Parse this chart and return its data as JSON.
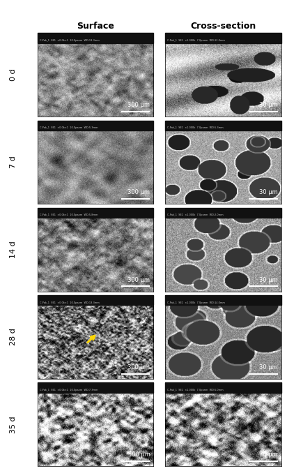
{
  "title_surface": "Surface",
  "title_cross": "Cross-section",
  "row_labels": [
    "0 d",
    "7 d",
    "14 d",
    "28 d",
    "35 d"
  ],
  "scale_bars_surface": [
    "300 μm",
    "300 μm",
    "300 μm",
    "300 μm",
    "500 μm"
  ],
  "scale_bars_cross": [
    "30 μm",
    "30 μm",
    "30 μm",
    "30 μm",
    "30 μm"
  ],
  "sem_info_left": [
    "C-Pak_1  SE1  ×0.0k×1  10.0panm  WD:13.3mm",
    "C-Pak_1  SE1  ×0.0k×1  10.0panm  WD:5.3mm",
    "C-Pak_1  SE1  ×0.0k×1  10.0panm  WD:5.8mm",
    "C-Pak_1  SE1  ×0.0k×1  10.0panm  WD:13.3mm",
    "C-Pak_1  SE1  ×0.0k×1  10.0panm  WD:7.3mm"
  ],
  "sem_info_right": [
    "C-Pak_1  SE1  ×1.000k  7.0panm  WD:12.0mm",
    "C-Pak_1  SE1  ×1.000k  7.0panm  WD:5.3mm",
    "C-Pak_1  SE1  ×1.000k  7.0panm  WD:2.0mm",
    "C-Pak_1  SE1  ×1.000k  7.0panm  WD:14.0mm",
    "C-Pak_1  SE1  ×1.000k  7.0panm  WD:5.0mm"
  ],
  "background_color": "#ffffff",
  "label_color": "#000000",
  "scalebar_color": "#ffffff",
  "infobar_color": "#1a1a1a",
  "arrow_color": "#ffd700",
  "n_rows": 5,
  "n_cols": 2,
  "fig_width": 4.12,
  "fig_height": 6.75,
  "title_fontsize": 9,
  "row_label_fontsize": 8,
  "scalebar_fontsize": 6,
  "info_fontsize": 4
}
